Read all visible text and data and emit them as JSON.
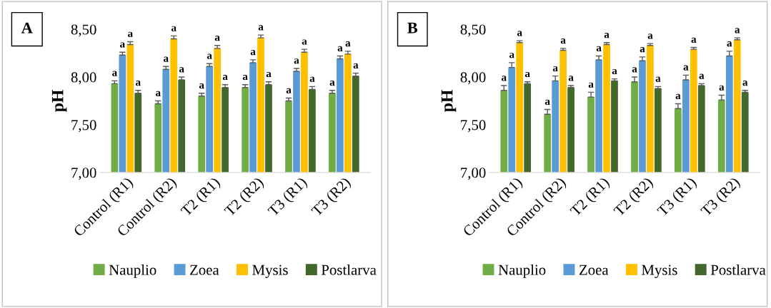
{
  "chart_data": [
    {
      "type": "bar",
      "title": "A",
      "ylabel": "pH",
      "categories": [
        "Control (R1)",
        "Control (R2)",
        "T2 (R1)",
        "T2 (R2)",
        "T3 (R1)",
        "T3 (R2)"
      ],
      "ylim": [
        7,
        8.5
      ],
      "yticks": [
        {
          "value": 7,
          "label": "7,00"
        },
        {
          "value": 7.5,
          "label": "7,50"
        },
        {
          "value": 8,
          "label": "8,00"
        },
        {
          "value": 8.5,
          "label": "8,50"
        }
      ],
      "grid": false,
      "legend": "bottom",
      "series": [
        {
          "name": "Nauplio",
          "color": "#70ad47",
          "values": [
            7.93,
            7.72,
            7.8,
            7.89,
            7.75,
            7.83
          ],
          "errors": [
            [
              7.93,
              7.96
            ],
            [
              7.72,
              7.75
            ],
            [
              7.8,
              7.83
            ],
            [
              7.89,
              7.92
            ],
            [
              7.75,
              7.78
            ],
            [
              7.83,
              7.86
            ]
          ],
          "value_labels": [
            "a",
            "a",
            "a",
            "a",
            "a",
            "a"
          ]
        },
        {
          "name": "Zoea",
          "color": "#5b9bd5",
          "values": [
            8.23,
            8.08,
            8.11,
            8.15,
            8.06,
            8.19
          ],
          "errors": [
            [
              8.23,
              8.26
            ],
            [
              8.08,
              8.11
            ],
            [
              8.11,
              8.14
            ],
            [
              8.15,
              8.18
            ],
            [
              8.06,
              8.09
            ],
            [
              8.19,
              8.22
            ]
          ],
          "value_labels": [
            "a",
            "a",
            "a",
            "a",
            "a",
            "a"
          ]
        },
        {
          "name": "Mysis",
          "color": "#ffc000",
          "values": [
            8.34,
            8.4,
            8.3,
            8.41,
            8.26,
            8.24
          ],
          "errors": [
            [
              8.34,
              8.37
            ],
            [
              8.4,
              8.43
            ],
            [
              8.3,
              8.33
            ],
            [
              8.41,
              8.44
            ],
            [
              8.26,
              8.29
            ],
            [
              8.24,
              8.27
            ]
          ],
          "value_labels": [
            "a",
            "a",
            "a",
            "a",
            "a",
            "a"
          ]
        },
        {
          "name": "Postlarva",
          "color": "#43682b",
          "values": [
            7.83,
            7.97,
            7.89,
            7.92,
            7.87,
            8.01
          ],
          "errors": [
            [
              7.83,
              7.86
            ],
            [
              7.97,
              8.0
            ],
            [
              7.89,
              7.92
            ],
            [
              7.92,
              7.95
            ],
            [
              7.87,
              7.9
            ],
            [
              8.01,
              8.04
            ]
          ],
          "value_labels": [
            "a",
            "a",
            "a",
            "a",
            "a",
            "a"
          ]
        }
      ]
    },
    {
      "type": "bar",
      "title": "B",
      "ylabel": "pH",
      "categories": [
        "Control (R1)",
        "Control (R2)",
        "T2 (R1)",
        "T2 (R2)",
        "T3 (R1)",
        "T3 (R2)"
      ],
      "ylim": [
        7,
        8.5
      ],
      "yticks": [
        {
          "value": 7,
          "label": "7,00"
        },
        {
          "value": 7.5,
          "label": "7,50"
        },
        {
          "value": 8,
          "label": "8,00"
        },
        {
          "value": 8.5,
          "label": "8,50"
        }
      ],
      "grid": false,
      "legend": "bottom",
      "series": [
        {
          "name": "Nauplio",
          "color": "#70ad47",
          "values": [
            7.86,
            7.61,
            7.79,
            7.95,
            7.67,
            7.76
          ],
          "errors": [
            [
              7.86,
              7.91
            ],
            [
              7.61,
              7.66
            ],
            [
              7.79,
              7.84
            ],
            [
              7.95,
              8.0
            ],
            [
              7.67,
              7.72
            ],
            [
              7.76,
              7.81
            ]
          ],
          "value_labels": [
            "a",
            "a",
            "a",
            "a",
            "a",
            "a"
          ]
        },
        {
          "name": "Zoea",
          "color": "#5b9bd5",
          "values": [
            8.1,
            7.96,
            8.18,
            8.17,
            7.97,
            8.22
          ],
          "errors": [
            [
              8.1,
              8.15
            ],
            [
              7.96,
              8.01
            ],
            [
              8.18,
              8.22
            ],
            [
              8.17,
              8.21
            ],
            [
              7.97,
              8.02
            ],
            [
              8.22,
              8.27
            ]
          ],
          "value_labels": [
            "a",
            "a",
            "a",
            "a",
            "a",
            "a"
          ]
        },
        {
          "name": "Mysis",
          "color": "#ffc000",
          "values": [
            8.36,
            8.28,
            8.34,
            8.33,
            8.29,
            8.39
          ],
          "errors": [
            [
              8.36,
              8.38
            ],
            [
              8.28,
              8.3
            ],
            [
              8.34,
              8.36
            ],
            [
              8.33,
              8.35
            ],
            [
              8.29,
              8.31
            ],
            [
              8.39,
              8.41
            ]
          ],
          "value_labels": [
            "a",
            "a",
            "a",
            "a",
            "a",
            "a"
          ]
        },
        {
          "name": "Postlarva",
          "color": "#43682b",
          "values": [
            7.93,
            7.89,
            7.96,
            7.88,
            7.91,
            7.84
          ],
          "errors": [
            [
              7.93,
              7.95
            ],
            [
              7.89,
              7.91
            ],
            [
              7.96,
              7.98
            ],
            [
              7.88,
              7.9
            ],
            [
              7.91,
              7.93
            ],
            [
              7.84,
              7.86
            ]
          ],
          "value_labels": [
            "a",
            "a",
            "a",
            "a",
            "a",
            "a"
          ]
        }
      ]
    }
  ]
}
